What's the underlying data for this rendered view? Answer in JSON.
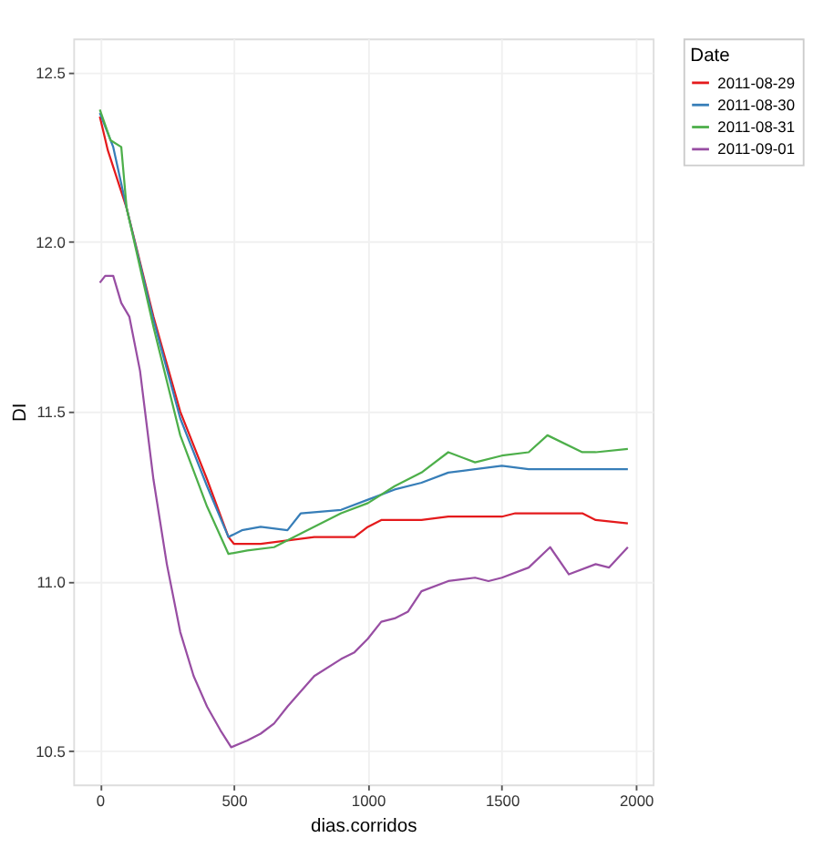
{
  "chart_data": {
    "type": "line",
    "xlabel": "dias.corridos",
    "ylabel": "DI",
    "legend_title": "Date",
    "legend": "right",
    "grid": true,
    "xlim": [
      -99,
      2063
    ],
    "ylim": [
      10.4,
      12.6
    ],
    "xticks": [
      0,
      500,
      1000,
      1500,
      2000
    ],
    "yticks": [
      {
        "value": 10.5,
        "label": "10.5"
      },
      {
        "value": 11,
        "label": "11.0"
      },
      {
        "value": 11.5,
        "label": "11.5"
      },
      {
        "value": 12,
        "label": "12.0"
      },
      {
        "value": 12.5,
        "label": "12.5"
      }
    ],
    "series": [
      {
        "name": "2011-08-29",
        "color": "#e41a1c",
        "x": [
          0,
          30,
          100,
          200,
          300,
          400,
          480,
          500,
          600,
          700,
          800,
          950,
          1000,
          1050,
          1200,
          1300,
          1500,
          1550,
          1700,
          1800,
          1850,
          1970
        ],
        "values": [
          12.37,
          12.27,
          12.1,
          11.78,
          11.5,
          11.3,
          11.13,
          11.11,
          11.11,
          11.12,
          11.13,
          11.13,
          11.16,
          11.18,
          11.18,
          11.19,
          11.19,
          11.2,
          11.2,
          11.2,
          11.18,
          11.17
        ]
      },
      {
        "name": "2011-08-30",
        "color": "#377eb8",
        "x": [
          0,
          50,
          100,
          200,
          300,
          400,
          480,
          530,
          600,
          700,
          750,
          900,
          1000,
          1100,
          1200,
          1300,
          1400,
          1500,
          1600,
          1970
        ],
        "values": [
          12.38,
          12.28,
          12.1,
          11.77,
          11.48,
          11.28,
          11.13,
          11.15,
          11.16,
          11.15,
          11.2,
          11.21,
          11.24,
          11.27,
          11.29,
          11.32,
          11.33,
          11.34,
          11.33,
          11.33
        ]
      },
      {
        "name": "2011-08-31",
        "color": "#4daf4a",
        "x": [
          0,
          40,
          80,
          100,
          200,
          300,
          400,
          480,
          550,
          650,
          750,
          900,
          1000,
          1100,
          1200,
          1300,
          1400,
          1500,
          1600,
          1670,
          1800,
          1850,
          1970
        ],
        "values": [
          12.39,
          12.3,
          12.28,
          12.1,
          11.75,
          11.43,
          11.22,
          11.08,
          11.09,
          11.1,
          11.14,
          11.2,
          11.23,
          11.28,
          11.32,
          11.38,
          11.35,
          11.37,
          11.38,
          11.43,
          11.38,
          11.38,
          11.39
        ]
      },
      {
        "name": "2011-09-01",
        "color": "#984ea3",
        "x": [
          0,
          20,
          50,
          80,
          110,
          150,
          200,
          250,
          300,
          350,
          400,
          450,
          490,
          550,
          600,
          650,
          700,
          800,
          900,
          950,
          1000,
          1050,
          1100,
          1150,
          1200,
          1300,
          1400,
          1450,
          1500,
          1600,
          1680,
          1750,
          1850,
          1900,
          1970
        ],
        "values": [
          11.88,
          11.9,
          11.9,
          11.82,
          11.78,
          11.62,
          11.3,
          11.05,
          10.85,
          10.72,
          10.63,
          10.56,
          10.51,
          10.53,
          10.55,
          10.58,
          10.63,
          10.72,
          10.77,
          10.79,
          10.83,
          10.88,
          10.89,
          10.91,
          10.97,
          11.0,
          11.01,
          11.0,
          11.01,
          11.04,
          11.1,
          11.02,
          11.05,
          11.04,
          11.1
        ]
      }
    ]
  }
}
